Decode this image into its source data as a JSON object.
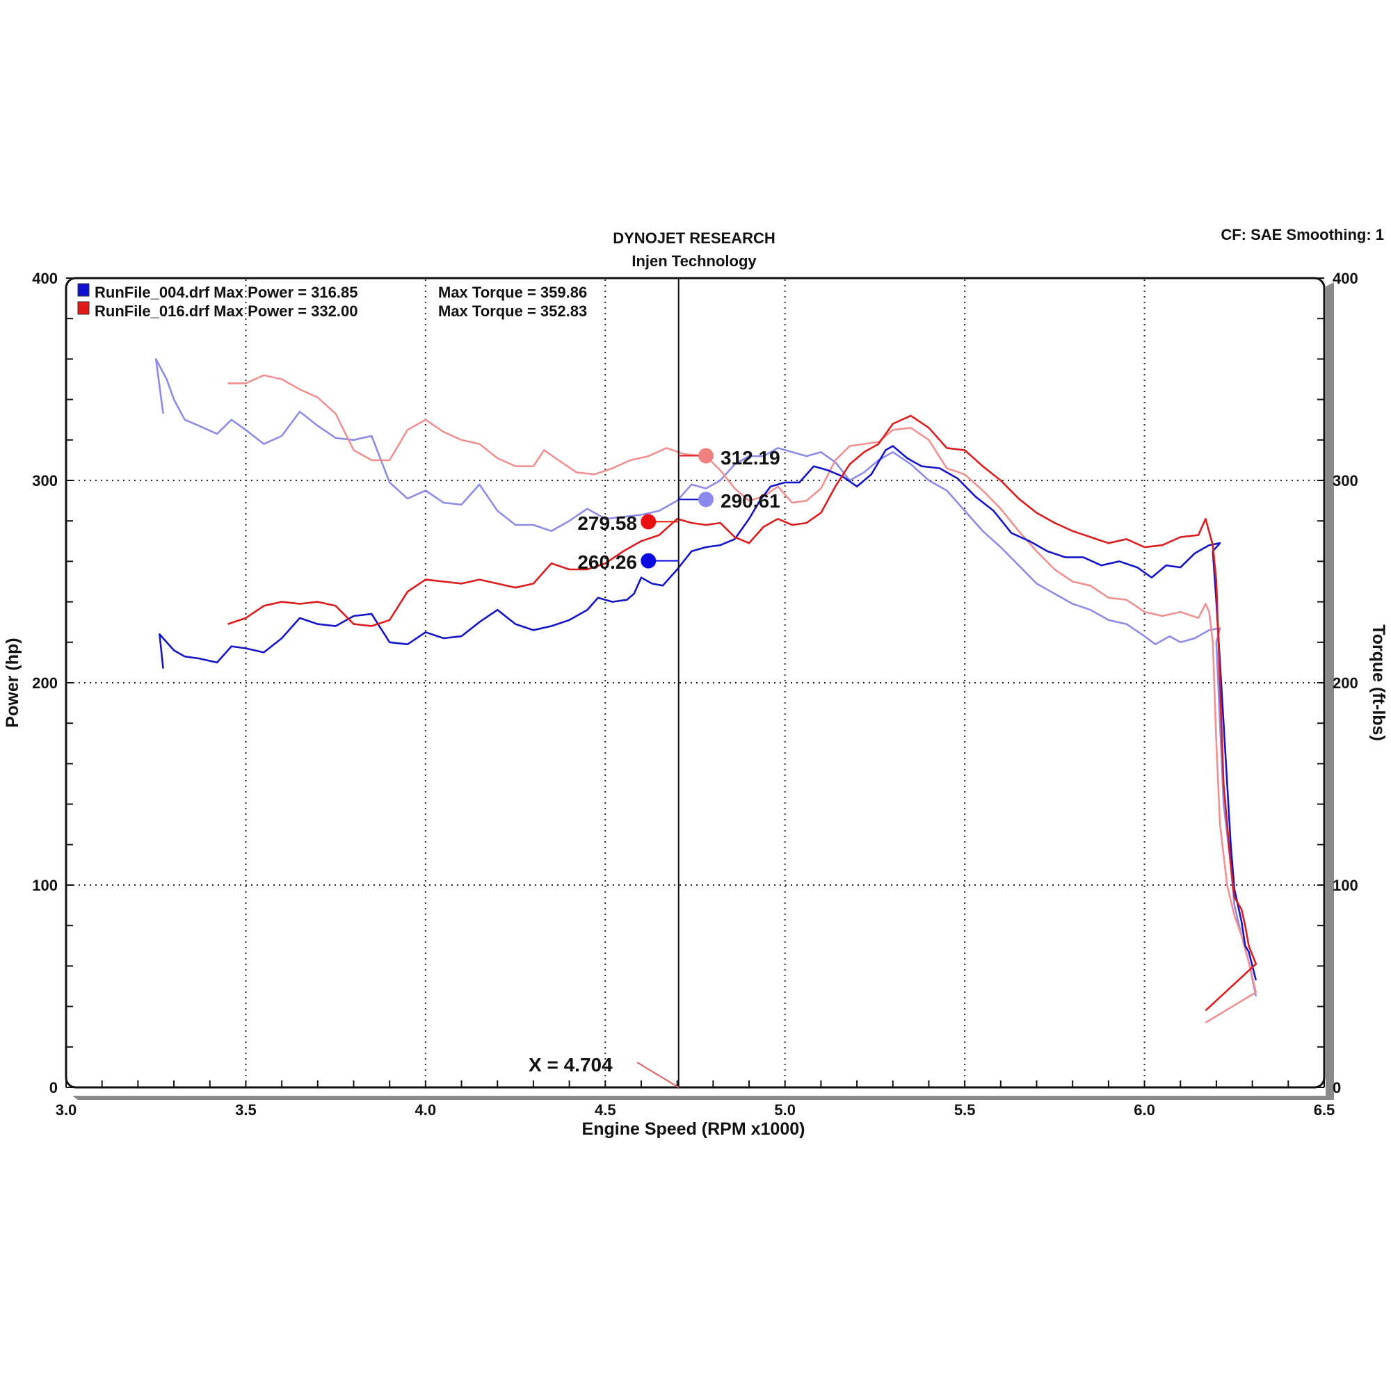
{
  "header": {
    "title": "DYNOJET RESEARCH",
    "subtitle": "Injen Technology",
    "settings": "CF: SAE  Smoothing: 1"
  },
  "chart_data": {
    "type": "line",
    "xlabel": "Engine Speed (RPM x1000)",
    "ylabel_left": "Power (hp)",
    "ylabel_right": "Torque (ft-lbs)",
    "xlim": [
      3.0,
      6.5
    ],
    "ylim": [
      0,
      400
    ],
    "x_ticks": [
      "3.0",
      "3.5",
      "4.0",
      "4.5",
      "5.0",
      "5.5",
      "6.0",
      "6.5"
    ],
    "y_ticks": [
      "0",
      "100",
      "200",
      "300",
      "400"
    ],
    "grid": true,
    "legend": [
      {
        "label": "RunFile_004.drf Max Power = 316.85",
        "torque": "Max Torque = 359.86",
        "color": "#1010d0"
      },
      {
        "label": "RunFile_016.drf Max Power = 332.00",
        "torque": "Max Torque = 352.83",
        "color": "#e01818"
      }
    ],
    "cursor": {
      "x": 4.704,
      "label": "X = 4.704"
    },
    "callouts": [
      {
        "value": "312.19",
        "color": "#f08080"
      },
      {
        "value": "290.61",
        "color": "#8a8aee"
      },
      {
        "value": "279.58",
        "color": "#e81010"
      },
      {
        "value": "260.26",
        "color": "#0a0ae0"
      }
    ],
    "series": [
      {
        "name": "RunFile_004.drf",
        "measure": "power",
        "color": "#1414c8",
        "points": [
          [
            3.27,
            207
          ],
          [
            3.26,
            224
          ],
          [
            3.28,
            220
          ],
          [
            3.3,
            216
          ],
          [
            3.33,
            213
          ],
          [
            3.37,
            212
          ],
          [
            3.42,
            210
          ],
          [
            3.46,
            218
          ],
          [
            3.5,
            217
          ],
          [
            3.55,
            215
          ],
          [
            3.6,
            222
          ],
          [
            3.65,
            232
          ],
          [
            3.7,
            229
          ],
          [
            3.75,
            228
          ],
          [
            3.8,
            233
          ],
          [
            3.85,
            234
          ],
          [
            3.9,
            220
          ],
          [
            3.95,
            219
          ],
          [
            4.0,
            225
          ],
          [
            4.05,
            222
          ],
          [
            4.1,
            223
          ],
          [
            4.15,
            230
          ],
          [
            4.2,
            236
          ],
          [
            4.25,
            229
          ],
          [
            4.3,
            226
          ],
          [
            4.35,
            228
          ],
          [
            4.4,
            231
          ],
          [
            4.45,
            236
          ],
          [
            4.48,
            242
          ],
          [
            4.52,
            240
          ],
          [
            4.56,
            241
          ],
          [
            4.58,
            244
          ],
          [
            4.6,
            252
          ],
          [
            4.63,
            249
          ],
          [
            4.66,
            248
          ],
          [
            4.7,
            256
          ],
          [
            4.74,
            265
          ],
          [
            4.78,
            267
          ],
          [
            4.82,
            268
          ],
          [
            4.86,
            271
          ],
          [
            4.9,
            281
          ],
          [
            4.93,
            290
          ],
          [
            4.96,
            297
          ],
          [
            5.0,
            299
          ],
          [
            5.04,
            299
          ],
          [
            5.08,
            307
          ],
          [
            5.12,
            305
          ],
          [
            5.16,
            302
          ],
          [
            5.2,
            297
          ],
          [
            5.24,
            303
          ],
          [
            5.28,
            315
          ],
          [
            5.3,
            317
          ],
          [
            5.34,
            311
          ],
          [
            5.38,
            307
          ],
          [
            5.43,
            306
          ],
          [
            5.48,
            301
          ],
          [
            5.53,
            292
          ],
          [
            5.58,
            285
          ],
          [
            5.63,
            274
          ],
          [
            5.68,
            270
          ],
          [
            5.73,
            265
          ],
          [
            5.78,
            262
          ],
          [
            5.83,
            262
          ],
          [
            5.88,
            258
          ],
          [
            5.93,
            260
          ],
          [
            5.98,
            257
          ],
          [
            6.02,
            252
          ],
          [
            6.06,
            258
          ],
          [
            6.1,
            257
          ],
          [
            6.14,
            264
          ],
          [
            6.18,
            268
          ],
          [
            6.21,
            269
          ],
          [
            6.19,
            265
          ],
          [
            6.2,
            240
          ],
          [
            6.22,
            180
          ],
          [
            6.24,
            120
          ],
          [
            6.25,
            98
          ],
          [
            6.27,
            82
          ],
          [
            6.28,
            70
          ],
          [
            6.29,
            67
          ],
          [
            6.31,
            53
          ]
        ]
      },
      {
        "name": "RunFile_004.drf",
        "measure": "torque",
        "color": "#8c8ce8",
        "points": [
          [
            3.27,
            333
          ],
          [
            3.25,
            360
          ],
          [
            3.28,
            350
          ],
          [
            3.3,
            340
          ],
          [
            3.33,
            330
          ],
          [
            3.37,
            327
          ],
          [
            3.42,
            323
          ],
          [
            3.46,
            330
          ],
          [
            3.5,
            325
          ],
          [
            3.55,
            318
          ],
          [
            3.6,
            322
          ],
          [
            3.65,
            334
          ],
          [
            3.7,
            327
          ],
          [
            3.75,
            321
          ],
          [
            3.8,
            320
          ],
          [
            3.85,
            322
          ],
          [
            3.9,
            299
          ],
          [
            3.95,
            291
          ],
          [
            4.0,
            295
          ],
          [
            4.05,
            289
          ],
          [
            4.1,
            288
          ],
          [
            4.15,
            298
          ],
          [
            4.2,
            285
          ],
          [
            4.25,
            278
          ],
          [
            4.3,
            278
          ],
          [
            4.35,
            275
          ],
          [
            4.4,
            280
          ],
          [
            4.45,
            286
          ],
          [
            4.5,
            281
          ],
          [
            4.55,
            282
          ],
          [
            4.6,
            283
          ],
          [
            4.65,
            285
          ],
          [
            4.7,
            290
          ],
          [
            4.74,
            298
          ],
          [
            4.78,
            296
          ],
          [
            4.82,
            300
          ],
          [
            4.86,
            308
          ],
          [
            4.9,
            312
          ],
          [
            4.94,
            312
          ],
          [
            4.98,
            316
          ],
          [
            5.02,
            314
          ],
          [
            5.06,
            312
          ],
          [
            5.1,
            314
          ],
          [
            5.14,
            309
          ],
          [
            5.18,
            300
          ],
          [
            5.22,
            304
          ],
          [
            5.26,
            310
          ],
          [
            5.3,
            314
          ],
          [
            5.35,
            308
          ],
          [
            5.4,
            300
          ],
          [
            5.45,
            295
          ],
          [
            5.5,
            285
          ],
          [
            5.55,
            275
          ],
          [
            5.6,
            267
          ],
          [
            5.65,
            258
          ],
          [
            5.7,
            249
          ],
          [
            5.75,
            244
          ],
          [
            5.8,
            239
          ],
          [
            5.85,
            236
          ],
          [
            5.9,
            231
          ],
          [
            5.95,
            229
          ],
          [
            6.0,
            223
          ],
          [
            6.03,
            219
          ],
          [
            6.07,
            223
          ],
          [
            6.1,
            220
          ],
          [
            6.14,
            222
          ],
          [
            6.18,
            226
          ],
          [
            6.21,
            227
          ],
          [
            6.2,
            220
          ],
          [
            6.21,
            180
          ],
          [
            6.22,
            140
          ],
          [
            6.24,
            110
          ],
          [
            6.25,
            90
          ],
          [
            6.27,
            75
          ],
          [
            6.29,
            62
          ],
          [
            6.31,
            45
          ]
        ]
      },
      {
        "name": "RunFile_016.drf",
        "measure": "power",
        "color": "#dc1c1c",
        "points": [
          [
            3.45,
            229
          ],
          [
            3.5,
            232
          ],
          [
            3.55,
            238
          ],
          [
            3.6,
            240
          ],
          [
            3.65,
            239
          ],
          [
            3.7,
            240
          ],
          [
            3.75,
            238
          ],
          [
            3.8,
            229
          ],
          [
            3.85,
            228
          ],
          [
            3.9,
            231
          ],
          [
            3.95,
            245
          ],
          [
            4.0,
            251
          ],
          [
            4.05,
            250
          ],
          [
            4.1,
            249
          ],
          [
            4.15,
            251
          ],
          [
            4.2,
            249
          ],
          [
            4.25,
            247
          ],
          [
            4.3,
            249
          ],
          [
            4.35,
            259
          ],
          [
            4.4,
            256
          ],
          [
            4.45,
            256
          ],
          [
            4.5,
            259
          ],
          [
            4.55,
            265
          ],
          [
            4.6,
            270
          ],
          [
            4.65,
            273
          ],
          [
            4.7,
            281
          ],
          [
            4.74,
            279
          ],
          [
            4.78,
            278
          ],
          [
            4.82,
            279
          ],
          [
            4.86,
            272
          ],
          [
            4.9,
            269
          ],
          [
            4.94,
            277
          ],
          [
            4.98,
            281
          ],
          [
            5.02,
            278
          ],
          [
            5.06,
            279
          ],
          [
            5.1,
            284
          ],
          [
            5.14,
            297
          ],
          [
            5.18,
            308
          ],
          [
            5.22,
            314
          ],
          [
            5.26,
            318
          ],
          [
            5.3,
            328
          ],
          [
            5.35,
            332
          ],
          [
            5.4,
            326
          ],
          [
            5.45,
            316
          ],
          [
            5.5,
            315
          ],
          [
            5.55,
            307
          ],
          [
            5.6,
            300
          ],
          [
            5.65,
            291
          ],
          [
            5.7,
            284
          ],
          [
            5.75,
            279
          ],
          [
            5.8,
            275
          ],
          [
            5.85,
            272
          ],
          [
            5.9,
            269
          ],
          [
            5.95,
            271
          ],
          [
            6.0,
            267
          ],
          [
            6.05,
            268
          ],
          [
            6.1,
            272
          ],
          [
            6.15,
            273
          ],
          [
            6.17,
            281
          ],
          [
            6.19,
            268
          ],
          [
            6.2,
            250
          ],
          [
            6.21,
            200
          ],
          [
            6.22,
            150
          ],
          [
            6.24,
            110
          ],
          [
            6.25,
            94
          ],
          [
            6.27,
            88
          ],
          [
            6.28,
            80
          ],
          [
            6.29,
            70
          ],
          [
            6.31,
            61
          ],
          [
            6.17,
            38
          ]
        ]
      },
      {
        "name": "RunFile_016.drf",
        "measure": "torque",
        "color": "#f09090",
        "points": [
          [
            3.45,
            348
          ],
          [
            3.5,
            348
          ],
          [
            3.55,
            352
          ],
          [
            3.6,
            350
          ],
          [
            3.65,
            345
          ],
          [
            3.7,
            341
          ],
          [
            3.75,
            333
          ],
          [
            3.8,
            315
          ],
          [
            3.85,
            310
          ],
          [
            3.9,
            310
          ],
          [
            3.95,
            325
          ],
          [
            4.0,
            330
          ],
          [
            4.05,
            324
          ],
          [
            4.1,
            320
          ],
          [
            4.15,
            318
          ],
          [
            4.2,
            311
          ],
          [
            4.25,
            307
          ],
          [
            4.3,
            307
          ],
          [
            4.33,
            315
          ],
          [
            4.37,
            310
          ],
          [
            4.42,
            304
          ],
          [
            4.47,
            303
          ],
          [
            4.52,
            306
          ],
          [
            4.57,
            310
          ],
          [
            4.62,
            312
          ],
          [
            4.67,
            316
          ],
          [
            4.72,
            313
          ],
          [
            4.78,
            312
          ],
          [
            4.82,
            305
          ],
          [
            4.86,
            296
          ],
          [
            4.9,
            290
          ],
          [
            4.94,
            292
          ],
          [
            4.98,
            297
          ],
          [
            5.02,
            289
          ],
          [
            5.06,
            290
          ],
          [
            5.1,
            296
          ],
          [
            5.14,
            310
          ],
          [
            5.18,
            317
          ],
          [
            5.22,
            318
          ],
          [
            5.26,
            319
          ],
          [
            5.3,
            325
          ],
          [
            5.35,
            326
          ],
          [
            5.4,
            320
          ],
          [
            5.45,
            306
          ],
          [
            5.5,
            303
          ],
          [
            5.55,
            295
          ],
          [
            5.6,
            286
          ],
          [
            5.65,
            275
          ],
          [
            5.7,
            265
          ],
          [
            5.75,
            256
          ],
          [
            5.8,
            250
          ],
          [
            5.85,
            248
          ],
          [
            5.9,
            242
          ],
          [
            5.95,
            241
          ],
          [
            6.0,
            235
          ],
          [
            6.05,
            233
          ],
          [
            6.1,
            235
          ],
          [
            6.15,
            232
          ],
          [
            6.17,
            239
          ],
          [
            6.18,
            235
          ],
          [
            6.19,
            220
          ],
          [
            6.2,
            170
          ],
          [
            6.21,
            130
          ],
          [
            6.23,
            100
          ],
          [
            6.25,
            85
          ],
          [
            6.27,
            75
          ],
          [
            6.29,
            62
          ],
          [
            6.31,
            47
          ],
          [
            6.17,
            32
          ]
        ]
      }
    ],
    "markers": [
      {
        "x": 4.78,
        "y": 312.19,
        "color": "#f08080"
      },
      {
        "x": 4.78,
        "y": 290.61,
        "color": "#8a8aee"
      },
      {
        "x": 4.62,
        "y": 279.58,
        "color": "#e81010"
      },
      {
        "x": 4.62,
        "y": 260.26,
        "color": "#0a0ae0"
      }
    ]
  }
}
